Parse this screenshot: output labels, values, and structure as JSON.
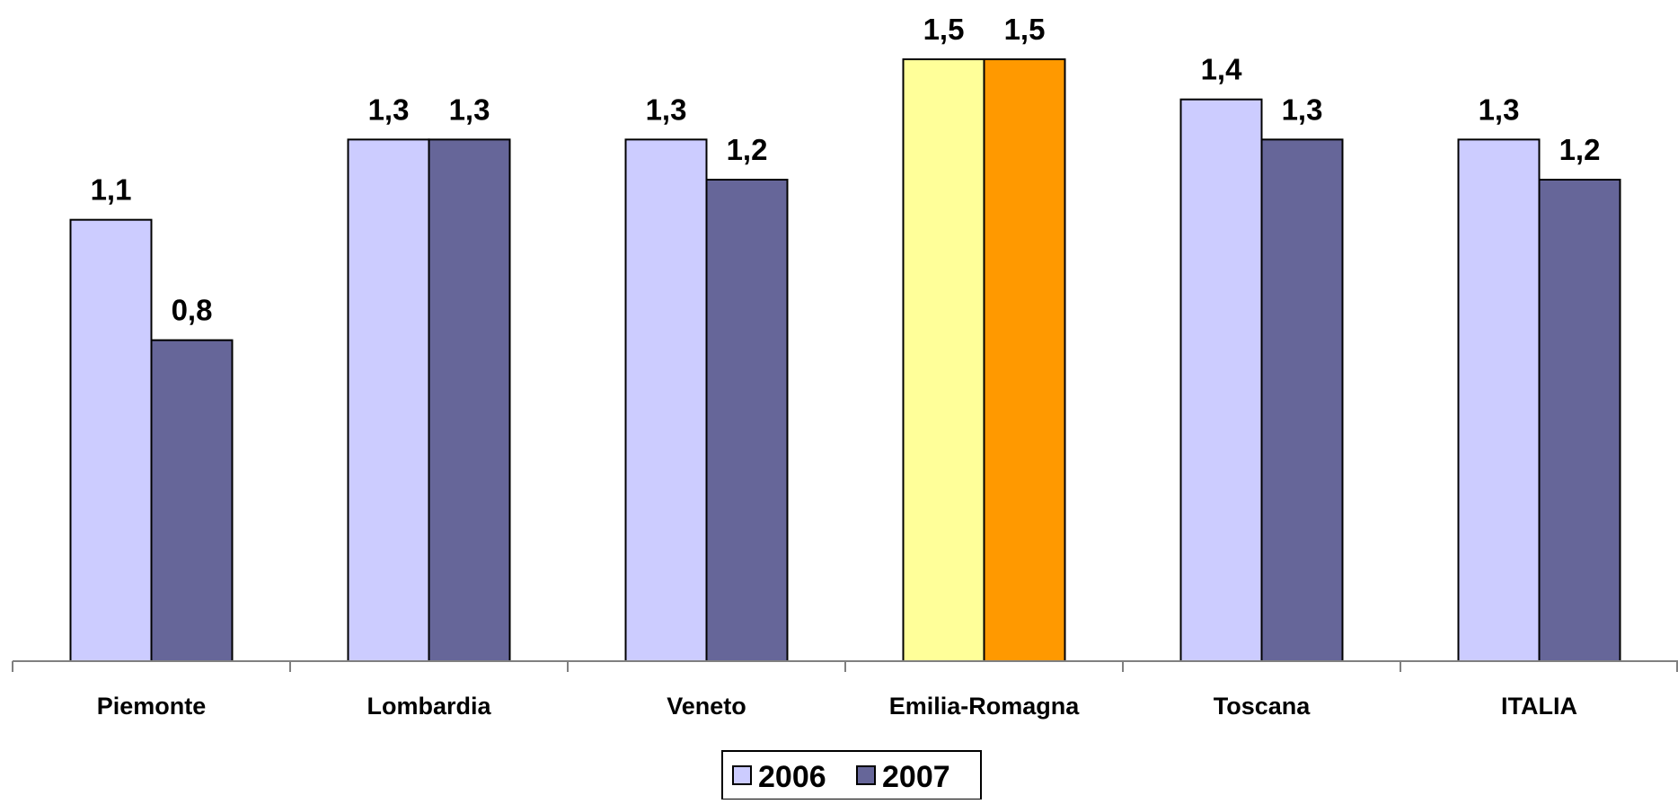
{
  "chart_data": {
    "type": "bar",
    "title": "",
    "xlabel": "",
    "ylabel": "",
    "categories": [
      "Piemonte",
      "Lombardia",
      "Veneto",
      "Emilia-Romagna",
      "Toscana",
      "ITALIA"
    ],
    "series": [
      {
        "name": "2006",
        "values": [
          1.1,
          1.3,
          1.3,
          1.5,
          1.4,
          1.3
        ],
        "labels": [
          "1,1",
          "1,3",
          "1,3",
          "1,5",
          "1,4",
          "1,3"
        ]
      },
      {
        "name": "2007",
        "values": [
          0.8,
          1.3,
          1.2,
          1.5,
          1.3,
          1.2
        ],
        "labels": [
          "0,8",
          "1,3",
          "1,2",
          "1,5",
          "1,3",
          "1,2"
        ]
      }
    ],
    "ylim": [
      0,
      1.5
    ],
    "grid": false,
    "legend_position": "bottom-center",
    "colors": {
      "series": [
        "#CCCCFF",
        "#666699"
      ],
      "highlight_category": "Emilia-Romagna",
      "highlight": [
        "#FFFF99",
        "#FF9900"
      ],
      "axis": "#808080",
      "outline": "#000000"
    }
  }
}
